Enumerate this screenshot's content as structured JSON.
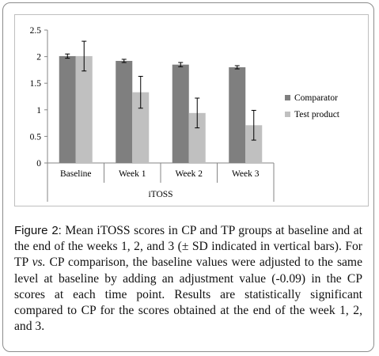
{
  "chart_data": {
    "type": "bar",
    "categories": [
      "Baseline",
      "Week 1",
      "Week 2",
      "Week 3"
    ],
    "series": [
      {
        "name": "Comparator",
        "color": "#7f7f7f",
        "values": [
          2.01,
          1.92,
          1.85,
          1.8
        ],
        "errors": [
          0.04,
          0.03,
          0.04,
          0.03
        ]
      },
      {
        "name": "Test product",
        "color": "#c0c0c0",
        "values": [
          2.01,
          1.33,
          0.94,
          0.71
        ],
        "errors": [
          0.28,
          0.3,
          0.28,
          0.28
        ]
      }
    ],
    "xlabel": "iTOSS",
    "ylim": [
      0,
      2.5
    ],
    "yticks": [
      "0",
      "0.5",
      "1",
      "1.5",
      "2",
      "2.5"
    ],
    "grid": false,
    "legend": "right"
  },
  "caption": {
    "label": "Figure 2:",
    "part1": " Mean iTOSS scores in CP and TP groups at baseline and at the end of the weeks 1, 2, and 3 (± SD indicated in vertical bars). For TP ",
    "vs": "vs.",
    "part2": " CP comparison, the baseline values were adjusted to the same level at baseline by adding an adjustment value (-0.09) in the CP scores at each time point. Results are statistically significant compared to CP for the scores obtained at the end of the week 1, 2, and 3."
  }
}
